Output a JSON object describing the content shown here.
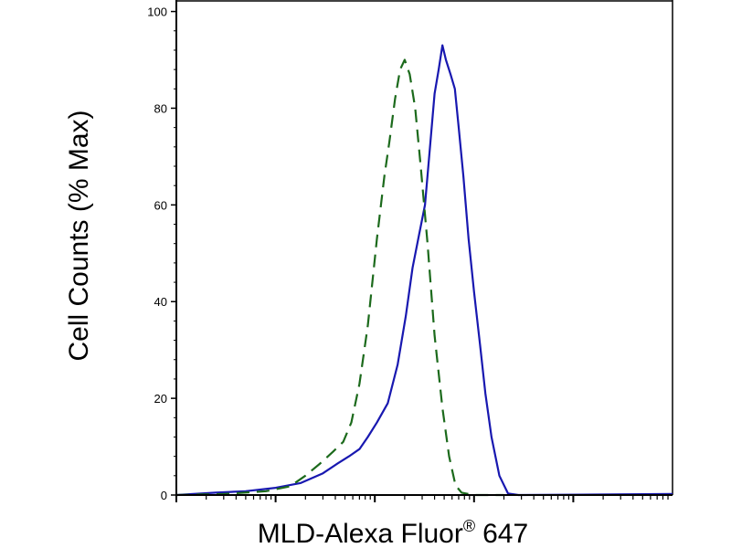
{
  "chart_data": {
    "type": "line",
    "xlabel": "MLD-Alexa Fluor",
    "xlabel_mark": "®",
    "xlabel_suffix": "647",
    "ylabel": "Cell Counts (% Max)",
    "x_scale": "log",
    "xlim": [
      1,
      100000
    ],
    "ylim": [
      0,
      102
    ],
    "yticks": [
      0,
      20,
      40,
      60,
      80,
      100
    ],
    "ytick_labels": [
      "0",
      "20",
      "40",
      "60",
      "80",
      "100"
    ],
    "xtick_major": [
      10,
      100,
      1000,
      10000
    ],
    "grid": false,
    "series": [
      {
        "color": "#1818b0",
        "dash": "solid",
        "points": [
          [
            1.0,
            0
          ],
          [
            2.5,
            0.5
          ],
          [
            5,
            0.8
          ],
          [
            10,
            1.5
          ],
          [
            18,
            2.5
          ],
          [
            30,
            4.5
          ],
          [
            42,
            6.5
          ],
          [
            55,
            8
          ],
          [
            70,
            9.5
          ],
          [
            85,
            12
          ],
          [
            105,
            15
          ],
          [
            135,
            19
          ],
          [
            170,
            27
          ],
          [
            205,
            37
          ],
          [
            240,
            47
          ],
          [
            280,
            54
          ],
          [
            320,
            60
          ],
          [
            360,
            72
          ],
          [
            400,
            83
          ],
          [
            440,
            88
          ],
          [
            480,
            93
          ],
          [
            520,
            90
          ],
          [
            580,
            87
          ],
          [
            640,
            84
          ],
          [
            700,
            76
          ],
          [
            780,
            66
          ],
          [
            880,
            53
          ],
          [
            1000,
            42
          ],
          [
            1150,
            31
          ],
          [
            1300,
            21
          ],
          [
            1500,
            12
          ],
          [
            1800,
            4
          ],
          [
            2200,
            0.3
          ],
          [
            2800,
            0
          ],
          [
            100000,
            0.2
          ]
        ]
      },
      {
        "color": "#1c6a1c",
        "dash": "dashed",
        "points": [
          [
            1.0,
            0
          ],
          [
            3,
            0.2
          ],
          [
            8,
            0.8
          ],
          [
            14,
            1.8
          ],
          [
            20,
            4
          ],
          [
            28,
            6.5
          ],
          [
            38,
            9
          ],
          [
            48,
            11
          ],
          [
            58,
            15
          ],
          [
            70,
            23
          ],
          [
            85,
            35
          ],
          [
            105,
            53
          ],
          [
            125,
            66
          ],
          [
            140,
            73
          ],
          [
            160,
            82
          ],
          [
            180,
            88
          ],
          [
            200,
            90
          ],
          [
            225,
            87
          ],
          [
            255,
            80
          ],
          [
            290,
            68
          ],
          [
            340,
            52
          ],
          [
            400,
            33
          ],
          [
            480,
            18
          ],
          [
            560,
            8
          ],
          [
            650,
            2
          ],
          [
            750,
            0.5
          ],
          [
            1000,
            0
          ],
          [
            2000,
            0
          ]
        ]
      }
    ]
  }
}
